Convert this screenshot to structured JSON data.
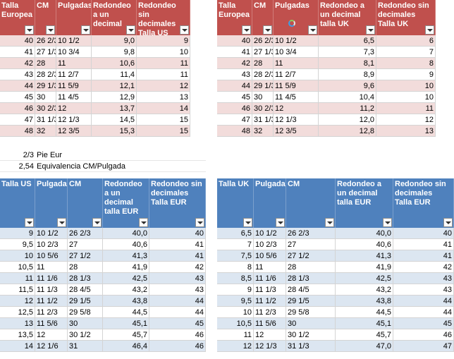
{
  "colors": {
    "red_header": "#c0504d",
    "red_band": "#f2dcdb",
    "blue_header": "#4f81bd",
    "blue_band": "#dce6f1"
  },
  "tables": {
    "eur_us": {
      "headers": [
        "Talla Europea",
        "CM",
        "Pulgadas",
        "Redondeo a un decimal",
        "Redondeo sin decimales Talla US"
      ],
      "rows": [
        [
          "40",
          "26 2/3",
          "10 1/2",
          "9,0",
          "9"
        ],
        [
          "41",
          "27 1/3",
          "10 3/4",
          "9,8",
          "10"
        ],
        [
          "42",
          "28",
          "11",
          "10,6",
          "11"
        ],
        [
          "43",
          "28 2/3",
          "11 2/7",
          "11,4",
          "11"
        ],
        [
          "44",
          "29 1/3",
          "11 5/9",
          "12,1",
          "12"
        ],
        [
          "45",
          "30",
          "11 4/5",
          "12,9",
          "13"
        ],
        [
          "46",
          "30 2/3",
          "12",
          "13,7",
          "14"
        ],
        [
          "47",
          "31 1/3",
          "12 1/3",
          "14,5",
          "15"
        ],
        [
          "48",
          "32",
          "12 3/5",
          "15,3",
          "15"
        ]
      ]
    },
    "eur_uk": {
      "headers": [
        "Talla Europea",
        "CM",
        "Pulgadas",
        "Redondeo a un decimal talla UK",
        "Redondeo sin decimales Talla UK"
      ],
      "rows": [
        [
          "40",
          "26 2/3",
          "10 1/2",
          "6,5",
          "6"
        ],
        [
          "41",
          "27 1/3",
          "10 3/4",
          "7,3",
          "7"
        ],
        [
          "42",
          "28",
          "11",
          "8,1",
          "8"
        ],
        [
          "43",
          "28 2/3",
          "11 2/7",
          "8,9",
          "9"
        ],
        [
          "44",
          "29 1/3",
          "11 5/9",
          "9,6",
          "10"
        ],
        [
          "45",
          "30",
          "11 4/5",
          "10,4",
          "10"
        ],
        [
          "46",
          "30 2/3",
          "12",
          "11,2",
          "11"
        ],
        [
          "47",
          "31 1/3",
          "12 1/3",
          "12,0",
          "12"
        ],
        [
          "48",
          "32",
          "12 3/5",
          "12,8",
          "13"
        ]
      ]
    },
    "us_eur": {
      "headers": [
        "Talla US",
        "Pulgadas",
        "CM",
        "Redondeo a un decimal talla EUR",
        "Redondeo sin decimales Talla EUR"
      ],
      "rows": [
        [
          "9",
          "10 1/2",
          "26 2/3",
          "40,0",
          "40"
        ],
        [
          "9,5",
          "10 2/3",
          "27",
          "40,6",
          "41"
        ],
        [
          "10",
          "10 5/6",
          "27 1/2",
          "41,3",
          "41"
        ],
        [
          "10,5",
          "11",
          "28",
          "41,9",
          "42"
        ],
        [
          "11",
          "11 1/6",
          "28 1/3",
          "42,5",
          "43"
        ],
        [
          "11,5",
          "11 1/3",
          "28 4/5",
          "43,2",
          "43"
        ],
        [
          "12",
          "11 1/2",
          "29 1/5",
          "43,8",
          "44"
        ],
        [
          "12,5",
          "11 2/3",
          "29 5/8",
          "44,5",
          "44"
        ],
        [
          "13",
          "11 5/6",
          "30",
          "45,1",
          "45"
        ],
        [
          "13,5",
          "12",
          "30 1/2",
          "45,7",
          "46"
        ],
        [
          "14",
          "12 1/6",
          "31",
          "46,4",
          "46"
        ]
      ]
    },
    "uk_eur": {
      "headers": [
        "Talla UK",
        "Pulgadas",
        "CM",
        "Redondeo a un decimal talla EUR",
        "Redondeo sin decimales Talla EUR"
      ],
      "rows": [
        [
          "6,5",
          "10 1/2",
          "26 2/3",
          "40,0",
          "40"
        ],
        [
          "7",
          "10 2/3",
          "27",
          "40,6",
          "41"
        ],
        [
          "7,5",
          "10 5/6",
          "27 1/2",
          "41,3",
          "41"
        ],
        [
          "8",
          "11",
          "28",
          "41,9",
          "42"
        ],
        [
          "8,5",
          "11 1/6",
          "28 1/3",
          "42,5",
          "43"
        ],
        [
          "9",
          "11 1/3",
          "28 4/5",
          "43,2",
          "43"
        ],
        [
          "9,5",
          "11 1/2",
          "29 1/5",
          "43,8",
          "44"
        ],
        [
          "10",
          "11 2/3",
          "29 5/8",
          "44,5",
          "44"
        ],
        [
          "10,5",
          "11 5/6",
          "30",
          "45,1",
          "45"
        ],
        [
          "11",
          "12",
          "30 1/2",
          "45,7",
          "46"
        ],
        [
          "12",
          "12 1/3",
          "31 1/3",
          "47,0",
          "47"
        ]
      ]
    }
  },
  "notes": [
    {
      "value": "2/3",
      "label": "Pie Eur"
    },
    {
      "value": "2,54",
      "label": "Equivalencia CM/Pulgada"
    }
  ]
}
